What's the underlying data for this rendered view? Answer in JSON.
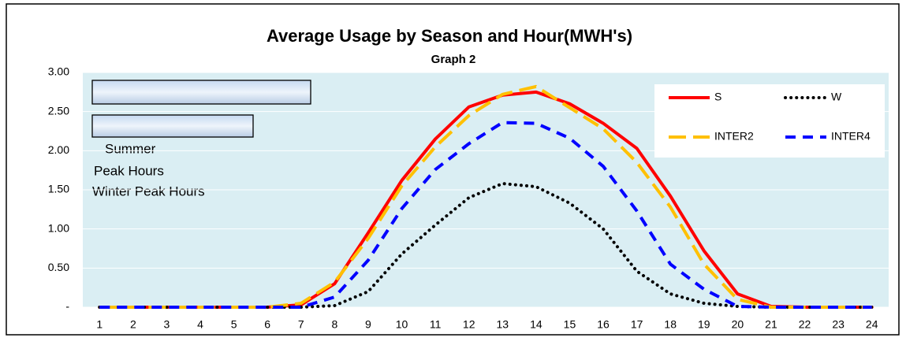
{
  "chart_data": {
    "type": "line",
    "title": "Average Usage by Season and Hour(MWH's)",
    "subtitle": "Graph 2",
    "annotations": [
      "Summer",
      "Peak Hours",
      "Winter Peak Hours"
    ],
    "categories": [
      1,
      2,
      3,
      4,
      5,
      6,
      7,
      8,
      9,
      10,
      11,
      12,
      13,
      14,
      15,
      16,
      17,
      18,
      19,
      20,
      21,
      22,
      23,
      24
    ],
    "series": [
      {
        "name": "S",
        "color": "#ff0000",
        "dash": "solid",
        "values": [
          0,
          0,
          0,
          0,
          0,
          0,
          0.03,
          0.3,
          0.95,
          1.62,
          2.15,
          2.56,
          2.71,
          2.75,
          2.6,
          2.35,
          2.03,
          1.42,
          0.72,
          0.17,
          0.01,
          0,
          0,
          0
        ]
      },
      {
        "name": "W",
        "color": "#000000",
        "dash": "dotted",
        "values": [
          0,
          0,
          0,
          0,
          0,
          0,
          0,
          0.02,
          0.2,
          0.68,
          1.05,
          1.4,
          1.58,
          1.54,
          1.33,
          1.0,
          0.46,
          0.17,
          0.05,
          0.01,
          0,
          0,
          0,
          0
        ]
      },
      {
        "name": "INTER2",
        "color": "#ffc000",
        "dash": "long",
        "values": [
          0,
          0,
          0,
          0,
          0,
          0,
          0.05,
          0.32,
          0.88,
          1.55,
          2.05,
          2.45,
          2.72,
          2.82,
          2.55,
          2.28,
          1.85,
          1.28,
          0.55,
          0.1,
          0,
          0,
          0,
          0
        ]
      },
      {
        "name": "INTER4",
        "color": "#0000ff",
        "dash": "dash",
        "values": [
          0,
          0,
          0,
          0,
          0,
          0,
          0,
          0.13,
          0.6,
          1.26,
          1.76,
          2.09,
          2.36,
          2.35,
          2.16,
          1.8,
          1.23,
          0.55,
          0.23,
          0.01,
          0,
          0,
          0,
          0
        ]
      }
    ],
    "ylim": [
      0,
      3
    ],
    "yticks": [
      {
        "value": 0,
        "label": "-"
      },
      {
        "value": 0.5,
        "label": "0.50"
      },
      {
        "value": 1,
        "label": "1.00"
      },
      {
        "value": 1.5,
        "label": "1.50"
      },
      {
        "value": 2,
        "label": "2.00"
      },
      {
        "value": 2.5,
        "label": "2.50"
      },
      {
        "value": 3,
        "label": "3.00"
      }
    ],
    "grid": true,
    "legend": "top-right"
  }
}
